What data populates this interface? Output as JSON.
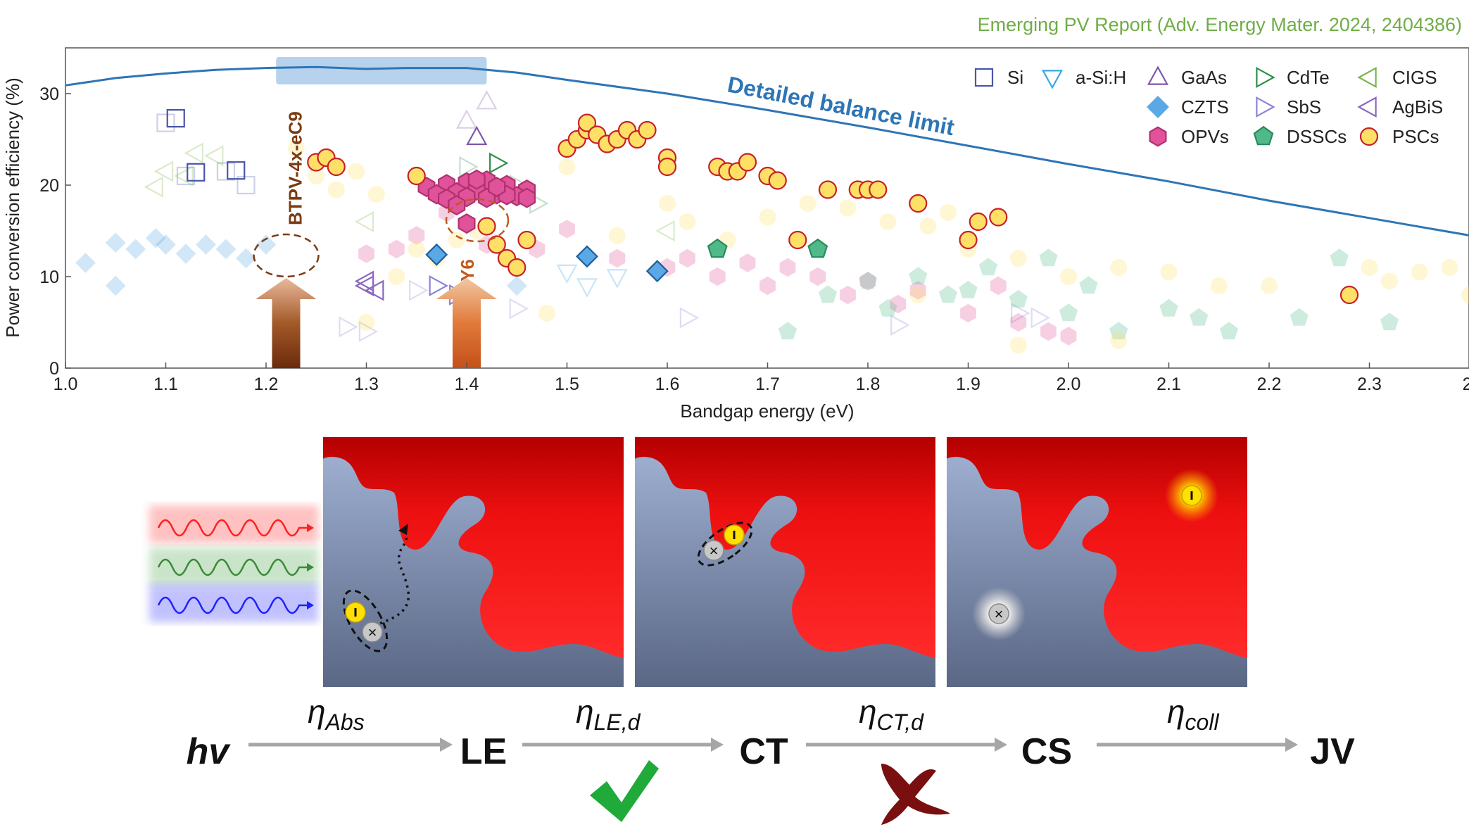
{
  "source_note": "Emerging PV Report (Adv. Energy Mater. 2024, 2404386)",
  "chart_data": {
    "type": "scatter",
    "xlabel": "Bandgap energy (eV)",
    "ylabel": "Power conversion efficiency (%)",
    "xlim": [
      1.0,
      2.4
    ],
    "ylim": [
      0,
      35
    ],
    "x_ticks": [
      "1.0",
      "1.1",
      "1.2",
      "1.3",
      "1.4",
      "1.5",
      "1.6",
      "1.7",
      "1.8",
      "1.9",
      "2.0",
      "2.1",
      "2.2",
      "2.3",
      "2."
    ],
    "y_ticks": [
      "0",
      "10",
      "20",
      "30"
    ],
    "grid": false,
    "legend_position": "top-right",
    "limit_curve": {
      "label": "Detailed balance limit",
      "color": "#2e75b6",
      "x": [
        1.0,
        1.05,
        1.1,
        1.15,
        1.2,
        1.25,
        1.3,
        1.34,
        1.4,
        1.45,
        1.5,
        1.6,
        1.7,
        1.8,
        1.9,
        2.0,
        2.1,
        2.2,
        2.3,
        2.4
      ],
      "y": [
        30.9,
        31.7,
        32.2,
        32.6,
        32.8,
        32.9,
        32.7,
        32.8,
        32.8,
        32.3,
        31.5,
        30.0,
        28.2,
        26.3,
        24.3,
        22.3,
        20.4,
        18.3,
        16.4,
        14.5
      ]
    },
    "highlight_band": {
      "x": [
        1.21,
        1.42
      ],
      "y": [
        31.0,
        34.0
      ]
    },
    "annotations": [
      {
        "label": "BTPV-4x-eC9",
        "x": 1.22,
        "color": "#7a3b12"
      },
      {
        "label": "Y6",
        "x": 1.4,
        "color": "#c05a1c"
      }
    ],
    "series": [
      {
        "name": "Si",
        "marker": "square",
        "color": "#4a55a8",
        "x": [
          1.11,
          1.13,
          1.17
        ],
        "y": [
          27.3,
          21.4,
          21.6
        ],
        "faded_x": [
          1.1,
          1.12,
          1.18,
          1.16
        ],
        "faded_y": [
          26.8,
          21.0,
          20.0,
          21.5
        ]
      },
      {
        "name": "a-Si:H",
        "marker": "triangle-down",
        "color": "#36a6e6",
        "x": [],
        "y": [],
        "faded_x": [
          1.5,
          1.52,
          1.55
        ],
        "faded_y": [
          10.5,
          9.0,
          10.0
        ]
      },
      {
        "name": "GaAs",
        "marker": "triangle-up",
        "color": "#7e57a8",
        "x": [
          1.41
        ],
        "y": [
          25.2
        ],
        "faded_x": [
          1.42,
          1.4
        ],
        "faded_y": [
          29.1,
          27.0
        ]
      },
      {
        "name": "CdTe",
        "marker": "triangle-right",
        "color": "#2f8f4e",
        "x": [
          1.43
        ],
        "y": [
          22.4
        ],
        "faded_x": [
          1.4,
          1.47,
          1.45
        ],
        "faded_y": [
          22.0,
          18.0,
          20.0
        ]
      },
      {
        "name": "CIGS",
        "marker": "triangle-left",
        "color": "#7ab648",
        "x": [],
        "y": [],
        "faded_x": [
          1.09,
          1.1,
          1.13,
          1.15,
          1.12,
          1.6,
          1.3
        ],
        "faded_y": [
          19.8,
          21.5,
          23.5,
          23.2,
          21.0,
          15.0,
          16.0
        ]
      },
      {
        "name": "CZTS",
        "marker": "diamond",
        "color": "#5aa9e6",
        "x": [
          1.37,
          1.52,
          1.59
        ],
        "y": [
          12.4,
          12.2,
          10.6
        ],
        "faded_x": [
          1.02,
          1.05,
          1.07,
          1.09,
          1.1,
          1.12,
          1.14,
          1.16,
          1.18,
          1.05,
          1.2,
          1.45
        ],
        "faded_y": [
          11.5,
          13.7,
          13.0,
          14.2,
          13.5,
          12.5,
          13.5,
          13.0,
          12.0,
          9.0,
          13.5,
          9.0
        ]
      },
      {
        "name": "SbS",
        "marker": "triangle-right",
        "color": "#8a84d8",
        "x": [
          1.37,
          1.39
        ],
        "y": [
          9.0,
          8.0
        ],
        "faded_x": [
          1.28,
          1.3,
          1.35,
          1.4,
          1.45,
          1.62,
          1.83,
          1.95,
          1.97
        ],
        "faded_y": [
          4.5,
          4.0,
          8.5,
          7.0,
          6.5,
          5.5,
          4.7,
          6.0,
          5.5
        ]
      },
      {
        "name": "AgBiS",
        "marker": "triangle-left",
        "color": "#8a68c0",
        "x": [
          1.3,
          1.3,
          1.31
        ],
        "y": [
          9.5,
          9.0,
          8.5
        ],
        "faded_x": [],
        "faded_y": []
      },
      {
        "name": "OPVs",
        "marker": "hexagon",
        "color": "#e0529a",
        "stroke": "#b0306e",
        "x": [
          1.36,
          1.38,
          1.4,
          1.42,
          1.44,
          1.46,
          1.37,
          1.39,
          1.41,
          1.43,
          1.45,
          1.38,
          1.4,
          1.42,
          1.44,
          1.46,
          1.41,
          1.43,
          1.39,
          1.4
        ],
        "y": [
          19.8,
          20.1,
          20.3,
          20.5,
          20.0,
          19.5,
          19.0,
          19.2,
          19.4,
          19.0,
          18.8,
          18.5,
          18.7,
          18.6,
          18.9,
          18.6,
          20.6,
          19.8,
          17.8,
          15.8
        ],
        "faded_x": [
          1.3,
          1.33,
          1.35,
          1.38,
          1.42,
          1.47,
          1.5,
          1.55,
          1.6,
          1.62,
          1.65,
          1.68,
          1.7,
          1.72,
          1.75,
          1.78,
          1.8,
          1.85,
          1.9,
          1.93,
          1.95,
          1.98,
          2.0,
          1.83
        ],
        "faded_y": [
          12.5,
          13.0,
          14.5,
          17.0,
          13.5,
          13.0,
          15.2,
          12.0,
          11.0,
          12.0,
          10.0,
          11.5,
          9.0,
          11.0,
          10.0,
          8.0,
          9.5,
          8.5,
          6.0,
          9.0,
          5.0,
          4.0,
          3.5,
          7.0
        ]
      },
      {
        "name": "DSSCs",
        "marker": "pentagon",
        "color": "#4fb98a",
        "stroke": "#2a8a5a",
        "x": [
          1.65,
          1.75
        ],
        "y": [
          13.0,
          13.0
        ],
        "faded_x": [
          1.72,
          1.76,
          1.8,
          1.82,
          1.85,
          1.88,
          1.92,
          1.95,
          1.98,
          2.0,
          2.02,
          2.05,
          2.1,
          2.13,
          2.16,
          2.23,
          2.27,
          2.32,
          1.9
        ],
        "faded_y": [
          4.0,
          8.0,
          9.5,
          6.5,
          10.0,
          8.0,
          11.0,
          7.5,
          12.0,
          6.0,
          9.0,
          4.0,
          6.5,
          5.5,
          4.0,
          5.5,
          12.0,
          5.0,
          8.5
        ]
      },
      {
        "name": "PSCs",
        "marker": "circle",
        "color": "#ffe066",
        "stroke": "#c8202a",
        "x": [
          1.25,
          1.26,
          1.27,
          1.35,
          1.43,
          1.44,
          1.45,
          1.46,
          1.5,
          1.51,
          1.52,
          1.52,
          1.53,
          1.54,
          1.55,
          1.56,
          1.57,
          1.58,
          1.6,
          1.6,
          1.65,
          1.66,
          1.67,
          1.68,
          1.7,
          1.71,
          1.73,
          1.76,
          1.79,
          1.8,
          1.81,
          1.85,
          1.9,
          1.91,
          1.93,
          2.28,
          1.42
        ],
        "y": [
          22.5,
          23.0,
          22.0,
          21.0,
          13.5,
          12.0,
          11.0,
          14.0,
          24.0,
          25.0,
          26.0,
          26.8,
          25.5,
          24.5,
          25.0,
          26.0,
          25.0,
          26.0,
          23.0,
          22.0,
          22.0,
          21.5,
          21.5,
          22.5,
          21.0,
          20.5,
          14.0,
          19.5,
          19.5,
          19.5,
          19.5,
          18.0,
          14.0,
          16.0,
          16.5,
          8.0,
          15.5
        ],
        "faded_x": [
          1.23,
          1.25,
          1.27,
          1.29,
          1.31,
          1.33,
          1.35,
          1.37,
          1.39,
          1.41,
          1.48,
          1.5,
          1.55,
          1.6,
          1.62,
          1.66,
          1.7,
          1.74,
          1.78,
          1.82,
          1.86,
          1.88,
          1.9,
          1.95,
          2.0,
          2.05,
          2.1,
          2.15,
          2.2,
          2.3,
          2.32,
          2.35,
          2.38,
          2.4,
          1.95,
          2.05,
          1.3,
          1.85
        ],
        "faded_y": [
          24.0,
          21.0,
          19.5,
          21.5,
          19.0,
          10.0,
          13.0,
          12.0,
          14.0,
          15.0,
          6.0,
          22.0,
          14.5,
          18.0,
          16.0,
          14.0,
          16.5,
          18.0,
          17.5,
          16.0,
          15.5,
          17.0,
          13.0,
          12.0,
          10.0,
          11.0,
          10.5,
          9.0,
          9.0,
          11.0,
          9.5,
          10.5,
          11.0,
          8.0,
          2.5,
          3.0,
          5.0,
          8.0
        ]
      }
    ]
  },
  "diagram": {
    "steps": [
      "hv",
      "LE",
      "CT",
      "CS",
      "JV"
    ],
    "etas": [
      {
        "main": "η",
        "sub": "Abs"
      },
      {
        "main": "η",
        "sub": "LE,d"
      },
      {
        "main": "η",
        "sub": "CT,d"
      },
      {
        "main": "η",
        "sub": "coll"
      }
    ],
    "check_color": "#1faa3a",
    "cross_color": "#7a0f0f"
  }
}
